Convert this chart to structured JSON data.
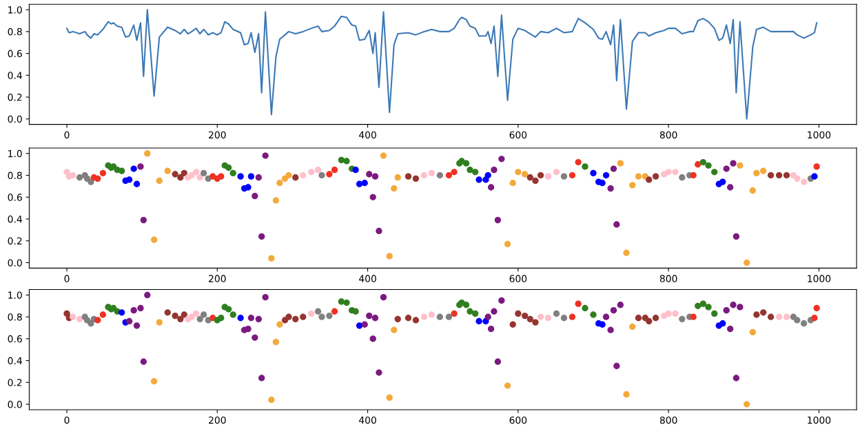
{
  "chart_data": [
    {
      "type": "line",
      "series": [
        {
          "color": "#3a78b5",
          "x": [
            0,
            3,
            8,
            17,
            24,
            27,
            32,
            36,
            41,
            48,
            55,
            59,
            62,
            67,
            73,
            78,
            83,
            89,
            93,
            98,
            102,
            107,
            116,
            123,
            134,
            144,
            151,
            156,
            161,
            166,
            172,
            177,
            182,
            188,
            194,
            200,
            205,
            210,
            215,
            221,
            231,
            236,
            241,
            245,
            250,
            255,
            259,
            264,
            272,
            278,
            283,
            290,
            295,
            304,
            314,
            325,
            334,
            339,
            349,
            356,
            365,
            372,
            379,
            384,
            389,
            396,
            402,
            407,
            410,
            415,
            421,
            429,
            435,
            440,
            454,
            464,
            475,
            485,
            496,
            508,
            515,
            522,
            525,
            531,
            536,
            543,
            548,
            557,
            560,
            564,
            568,
            573,
            578,
            586,
            593,
            600,
            609,
            616,
            623,
            630,
            640,
            651,
            661,
            672,
            680,
            689,
            700,
            707,
            712,
            717,
            723,
            727,
            731,
            736,
            744,
            752,
            760,
            769,
            774,
            783,
            794,
            800,
            809,
            818,
            828,
            833,
            839,
            846,
            853,
            861,
            867,
            872,
            877,
            882,
            886,
            890,
            895,
            904,
            912,
            917,
            926,
            936,
            947,
            957,
            966,
            971,
            980,
            989,
            994,
            997
          ],
          "values": [
            0.83,
            0.79,
            0.8,
            0.78,
            0.8,
            0.77,
            0.74,
            0.78,
            0.77,
            0.82,
            0.89,
            0.87,
            0.88,
            0.85,
            0.84,
            0.75,
            0.76,
            0.86,
            0.72,
            0.88,
            0.39,
            1.0,
            0.21,
            0.75,
            0.84,
            0.81,
            0.78,
            0.82,
            0.78,
            0.8,
            0.83,
            0.78,
            0.82,
            0.77,
            0.79,
            0.77,
            0.79,
            0.89,
            0.87,
            0.82,
            0.79,
            0.68,
            0.69,
            0.79,
            0.61,
            0.78,
            0.24,
            0.98,
            0.04,
            0.57,
            0.73,
            0.77,
            0.8,
            0.78,
            0.8,
            0.83,
            0.85,
            0.8,
            0.81,
            0.85,
            0.94,
            0.93,
            0.86,
            0.85,
            0.72,
            0.73,
            0.81,
            0.6,
            0.79,
            0.29,
            0.98,
            0.06,
            0.68,
            0.78,
            0.79,
            0.77,
            0.8,
            0.82,
            0.8,
            0.8,
            0.83,
            0.91,
            0.93,
            0.91,
            0.85,
            0.83,
            0.76,
            0.76,
            0.8,
            0.69,
            0.85,
            0.39,
            0.95,
            0.17,
            0.73,
            0.83,
            0.81,
            0.78,
            0.75,
            0.8,
            0.79,
            0.83,
            0.79,
            0.8,
            0.92,
            0.88,
            0.82,
            0.74,
            0.73,
            0.8,
            0.68,
            0.86,
            0.35,
            0.91,
            0.09,
            0.71,
            0.79,
            0.79,
            0.76,
            0.79,
            0.81,
            0.83,
            0.83,
            0.78,
            0.8,
            0.8,
            0.9,
            0.92,
            0.89,
            0.83,
            0.72,
            0.74,
            0.86,
            0.69,
            0.91,
            0.24,
            0.89,
            0.0,
            0.66,
            0.82,
            0.84,
            0.8,
            0.8,
            0.8,
            0.8,
            0.77,
            0.74,
            0.77,
            0.79,
            0.88
          ]
        }
      ],
      "xlim": [
        -50,
        1050
      ],
      "xticks": [
        0,
        200,
        400,
        600,
        800,
        1000
      ],
      "ylim": [
        -0.05,
        1.05
      ],
      "yticks": [
        {
          "value": 0,
          "label": "0.0"
        },
        {
          "value": 0.2,
          "label": "0.2"
        },
        {
          "value": 0.4,
          "label": "0.4"
        },
        {
          "value": 0.6,
          "label": "0.6"
        },
        {
          "value": 0.8,
          "label": "0.8"
        },
        {
          "value": 1,
          "label": "1.0"
        }
      ]
    },
    {
      "type": "scatter",
      "marker": "circle",
      "x": [
        0,
        3,
        8,
        17,
        24,
        27,
        32,
        36,
        41,
        48,
        55,
        59,
        62,
        67,
        73,
        78,
        83,
        89,
        93,
        98,
        102,
        107,
        116,
        123,
        134,
        144,
        151,
        156,
        161,
        166,
        172,
        177,
        182,
        188,
        194,
        200,
        205,
        210,
        215,
        221,
        231,
        236,
        241,
        245,
        250,
        255,
        259,
        264,
        272,
        278,
        283,
        290,
        295,
        304,
        314,
        325,
        334,
        339,
        349,
        356,
        365,
        372,
        379,
        384,
        389,
        396,
        402,
        407,
        410,
        415,
        421,
        429,
        435,
        440,
        454,
        464,
        475,
        485,
        496,
        508,
        515,
        522,
        525,
        531,
        536,
        543,
        548,
        557,
        560,
        564,
        568,
        573,
        578,
        586,
        593,
        600,
        609,
        616,
        623,
        630,
        640,
        651,
        661,
        672,
        680,
        689,
        700,
        707,
        712,
        717,
        723,
        727,
        731,
        736,
        744,
        752,
        760,
        769,
        774,
        783,
        794,
        800,
        809,
        818,
        828,
        833,
        839,
        846,
        853,
        861,
        867,
        872,
        877,
        882,
        886,
        890,
        895,
        904,
        912,
        917,
        926,
        936,
        947,
        957,
        966,
        971,
        980,
        989,
        994,
        997
      ],
      "values": [
        0.83,
        0.79,
        0.8,
        0.78,
        0.8,
        0.77,
        0.74,
        0.78,
        0.77,
        0.82,
        0.89,
        0.87,
        0.88,
        0.85,
        0.84,
        0.75,
        0.76,
        0.86,
        0.72,
        0.88,
        0.39,
        1.0,
        0.21,
        0.75,
        0.84,
        0.81,
        0.78,
        0.82,
        0.78,
        0.8,
        0.83,
        0.78,
        0.82,
        0.77,
        0.79,
        0.77,
        0.79,
        0.89,
        0.87,
        0.82,
        0.79,
        0.68,
        0.69,
        0.79,
        0.61,
        0.78,
        0.24,
        0.98,
        0.04,
        0.57,
        0.73,
        0.77,
        0.8,
        0.78,
        0.8,
        0.83,
        0.85,
        0.8,
        0.81,
        0.85,
        0.94,
        0.93,
        0.86,
        0.85,
        0.72,
        0.73,
        0.81,
        0.6,
        0.79,
        0.29,
        0.98,
        0.06,
        0.68,
        0.78,
        0.79,
        0.77,
        0.8,
        0.82,
        0.8,
        0.8,
        0.83,
        0.91,
        0.93,
        0.91,
        0.85,
        0.83,
        0.76,
        0.76,
        0.8,
        0.69,
        0.85,
        0.39,
        0.95,
        0.17,
        0.73,
        0.83,
        0.81,
        0.78,
        0.75,
        0.8,
        0.79,
        0.83,
        0.79,
        0.8,
        0.92,
        0.88,
        0.82,
        0.74,
        0.73,
        0.8,
        0.68,
        0.86,
        0.35,
        0.91,
        0.09,
        0.71,
        0.79,
        0.79,
        0.76,
        0.79,
        0.81,
        0.83,
        0.83,
        0.78,
        0.8,
        0.8,
        0.9,
        0.92,
        0.89,
        0.83,
        0.72,
        0.74,
        0.86,
        0.69,
        0.91,
        0.24,
        0.89,
        0.0,
        0.66,
        0.82,
        0.84,
        0.8,
        0.8,
        0.8,
        0.8,
        0.77,
        0.74,
        0.77,
        0.79,
        0.88
      ],
      "colors": [
        "#ffc0cb",
        "#ffc0cb",
        "#ffc0cb",
        "#808080",
        "#808080",
        "#808080",
        "#808080",
        "#ee3224",
        "#ee3224",
        "#ee3224",
        "#2f7f1f",
        "#2f7f1f",
        "#2f7f1f",
        "#2f7f1f",
        "#2f7f1f",
        "#0000ff",
        "#0000ff",
        "#0000ff",
        "#0000ff",
        "#7b1a80",
        "#7b1a80",
        "#f4a93b",
        "#f4a93b",
        "#f4a93b",
        "#f4a93b",
        "#953530",
        "#953530",
        "#953530",
        "#ffc0cb",
        "#ffc0cb",
        "#ffc0cb",
        "#ffc0cb",
        "#808080",
        "#808080",
        "#ee3224",
        "#ee3224",
        "#ee3224",
        "#2f7f1f",
        "#2f7f1f",
        "#2f7f1f",
        "#0000ff",
        "#0000ff",
        "#0000ff",
        "#0000ff",
        "#7b1a80",
        "#7b1a80",
        "#7b1a80",
        "#7b1a80",
        "#f4a93b",
        "#f4a93b",
        "#f4a93b",
        "#f4a93b",
        "#f4a93b",
        "#953530",
        "#ffc0cb",
        "#ffc0cb",
        "#ffc0cb",
        "#808080",
        "#ee3224",
        "#ee3224",
        "#2f7f1f",
        "#2f7f1f",
        "#2f7f1f",
        "#0000ff",
        "#0000ff",
        "#0000ff",
        "#7b1a80",
        "#7b1a80",
        "#7b1a80",
        "#7b1a80",
        "#f4a93b",
        "#f4a93b",
        "#f4a93b",
        "#f4a93b",
        "#953530",
        "#953530",
        "#ffc0cb",
        "#ffc0cb",
        "#808080",
        "#ee3224",
        "#ee3224",
        "#2f7f1f",
        "#2f7f1f",
        "#2f7f1f",
        "#2f7f1f",
        "#2f7f1f",
        "#0000ff",
        "#0000ff",
        "#0000ff",
        "#7b1a80",
        "#7b1a80",
        "#7b1a80",
        "#7b1a80",
        "#f4a93b",
        "#f4a93b",
        "#f4a93b",
        "#f4a93b",
        "#953530",
        "#953530",
        "#953530",
        "#ffc0cb",
        "#ffc0cb",
        "#808080",
        "#ee3224",
        "#ee3224",
        "#2f7f1f",
        "#0000ff",
        "#0000ff",
        "#0000ff",
        "#0000ff",
        "#7b1a80",
        "#7b1a80",
        "#7b1a80",
        "#f4a93b",
        "#f4a93b",
        "#f4a93b",
        "#f4a93b",
        "#f4a93b",
        "#953530",
        "#953530",
        "#ffc0cb",
        "#ffc0cb",
        "#ffc0cb",
        "#808080",
        "#808080",
        "#ee3224",
        "#ee3224",
        "#2f7f1f",
        "#2f7f1f",
        "#2f7f1f",
        "#0000ff",
        "#0000ff",
        "#7b1a80",
        "#7b1a80",
        "#7b1a80",
        "#7b1a80",
        "#f4a93b",
        "#f4a93b",
        "#f4a93b",
        "#f4a93b",
        "#f4a93b",
        "#953530",
        "#953530",
        "#953530",
        "#ffc0cb",
        "#ffc0cb",
        "#ffc0cb",
        "#808080",
        "#0000ff",
        "#ee3224"
      ],
      "xlim": [
        -50,
        1050
      ],
      "xticks": [
        0,
        200,
        400,
        600,
        800,
        1000
      ],
      "ylim": [
        -0.05,
        1.05
      ],
      "yticks": [
        {
          "value": 0,
          "label": "0.0"
        },
        {
          "value": 0.2,
          "label": "0.2"
        },
        {
          "value": 0.4,
          "label": "0.4"
        },
        {
          "value": 0.6,
          "label": "0.6"
        },
        {
          "value": 0.8,
          "label": "0.8"
        },
        {
          "value": 1,
          "label": "1.0"
        }
      ]
    },
    {
      "type": "scatter",
      "marker": "circle",
      "x": [
        0,
        3,
        8,
        17,
        24,
        27,
        32,
        36,
        41,
        48,
        55,
        59,
        62,
        67,
        73,
        78,
        83,
        89,
        93,
        98,
        102,
        107,
        116,
        123,
        134,
        144,
        151,
        156,
        161,
        166,
        172,
        177,
        182,
        188,
        194,
        200,
        205,
        210,
        215,
        221,
        231,
        236,
        241,
        245,
        250,
        255,
        259,
        264,
        272,
        278,
        283,
        290,
        295,
        304,
        314,
        325,
        334,
        339,
        349,
        356,
        365,
        372,
        379,
        384,
        389,
        396,
        402,
        407,
        410,
        415,
        421,
        429,
        435,
        440,
        454,
        464,
        475,
        485,
        496,
        508,
        515,
        522,
        525,
        531,
        536,
        543,
        548,
        557,
        560,
        564,
        568,
        573,
        578,
        586,
        593,
        600,
        609,
        616,
        623,
        630,
        640,
        651,
        661,
        672,
        680,
        689,
        700,
        707,
        712,
        717,
        723,
        727,
        731,
        736,
        744,
        752,
        760,
        769,
        774,
        783,
        794,
        800,
        809,
        818,
        828,
        833,
        839,
        846,
        853,
        861,
        867,
        872,
        877,
        882,
        886,
        890,
        895,
        904,
        912,
        917,
        926,
        936,
        947,
        957,
        966,
        971,
        980,
        989,
        994,
        997
      ],
      "values": [
        0.83,
        0.79,
        0.8,
        0.78,
        0.8,
        0.77,
        0.74,
        0.78,
        0.77,
        0.82,
        0.89,
        0.87,
        0.88,
        0.85,
        0.84,
        0.75,
        0.76,
        0.86,
        0.72,
        0.88,
        0.39,
        1.0,
        0.21,
        0.75,
        0.84,
        0.81,
        0.78,
        0.82,
        0.78,
        0.8,
        0.83,
        0.78,
        0.82,
        0.77,
        0.79,
        0.77,
        0.79,
        0.89,
        0.87,
        0.82,
        0.79,
        0.68,
        0.69,
        0.79,
        0.61,
        0.78,
        0.24,
        0.98,
        0.04,
        0.57,
        0.73,
        0.77,
        0.8,
        0.78,
        0.8,
        0.83,
        0.85,
        0.8,
        0.81,
        0.85,
        0.94,
        0.93,
        0.86,
        0.85,
        0.72,
        0.73,
        0.81,
        0.6,
        0.79,
        0.29,
        0.98,
        0.06,
        0.68,
        0.78,
        0.79,
        0.77,
        0.8,
        0.82,
        0.8,
        0.8,
        0.83,
        0.91,
        0.93,
        0.91,
        0.85,
        0.83,
        0.76,
        0.76,
        0.8,
        0.69,
        0.85,
        0.39,
        0.95,
        0.17,
        0.73,
        0.83,
        0.81,
        0.78,
        0.75,
        0.8,
        0.79,
        0.83,
        0.79,
        0.8,
        0.92,
        0.88,
        0.82,
        0.74,
        0.73,
        0.8,
        0.68,
        0.86,
        0.35,
        0.91,
        0.09,
        0.71,
        0.79,
        0.79,
        0.76,
        0.79,
        0.81,
        0.83,
        0.83,
        0.78,
        0.8,
        0.8,
        0.9,
        0.92,
        0.89,
        0.83,
        0.72,
        0.74,
        0.86,
        0.69,
        0.91,
        0.24,
        0.89,
        0.0,
        0.66,
        0.82,
        0.84,
        0.8,
        0.8,
        0.8,
        0.8,
        0.77,
        0.74,
        0.77,
        0.79,
        0.88
      ],
      "colors": [
        "#953530",
        "#953530",
        "#ffc0cb",
        "#ffc0cb",
        "#808080",
        "#808080",
        "#808080",
        "#808080",
        "#ee3224",
        "#ee3224",
        "#2f7f1f",
        "#2f7f1f",
        "#2f7f1f",
        "#2f7f1f",
        "#0000ff",
        "#0000ff",
        "#7b1a80",
        "#7b1a80",
        "#7b1a80",
        "#7b1a80",
        "#7b1a80",
        "#7b1a80",
        "#f4a93b",
        "#f4a93b",
        "#953530",
        "#953530",
        "#953530",
        "#953530",
        "#ffc0cb",
        "#ffc0cb",
        "#ffc0cb",
        "#808080",
        "#808080",
        "#808080",
        "#ee3224",
        "#2f7f1f",
        "#2f7f1f",
        "#2f7f1f",
        "#2f7f1f",
        "#2f7f1f",
        "#0000ff",
        "#7b1a80",
        "#7b1a80",
        "#7b1a80",
        "#7b1a80",
        "#7b1a80",
        "#7b1a80",
        "#7b1a80",
        "#f4a93b",
        "#f4a93b",
        "#f4a93b",
        "#953530",
        "#953530",
        "#953530",
        "#953530",
        "#ffc0cb",
        "#808080",
        "#808080",
        "#808080",
        "#ee3224",
        "#2f7f1f",
        "#2f7f1f",
        "#2f7f1f",
        "#2f7f1f",
        "#0000ff",
        "#7b1a80",
        "#7b1a80",
        "#7b1a80",
        "#7b1a80",
        "#7b1a80",
        "#7b1a80",
        "#f4a93b",
        "#f4a93b",
        "#953530",
        "#953530",
        "#953530",
        "#ffc0cb",
        "#ffc0cb",
        "#808080",
        "#808080",
        "#ee3224",
        "#2f7f1f",
        "#2f7f1f",
        "#2f7f1f",
        "#2f7f1f",
        "#2f7f1f",
        "#0000ff",
        "#0000ff",
        "#7b1a80",
        "#7b1a80",
        "#7b1a80",
        "#7b1a80",
        "#7b1a80",
        "#f4a93b",
        "#953530",
        "#953530",
        "#953530",
        "#953530",
        "#953530",
        "#ffc0cb",
        "#ffc0cb",
        "#808080",
        "#808080",
        "#ee3224",
        "#ee3224",
        "#2f7f1f",
        "#2f7f1f",
        "#0000ff",
        "#0000ff",
        "#7b1a80",
        "#7b1a80",
        "#7b1a80",
        "#7b1a80",
        "#7b1a80",
        "#f4a93b",
        "#f4a93b",
        "#953530",
        "#953530",
        "#953530",
        "#953530",
        "#ffc0cb",
        "#ffc0cb",
        "#ffc0cb",
        "#808080",
        "#808080",
        "#ee3224",
        "#2f7f1f",
        "#2f7f1f",
        "#2f7f1f",
        "#2f7f1f",
        "#0000ff",
        "#0000ff",
        "#7b1a80",
        "#7b1a80",
        "#7b1a80",
        "#7b1a80",
        "#7b1a80",
        "#f4a93b",
        "#f4a93b",
        "#953530",
        "#953530",
        "#953530",
        "#ffc0cb",
        "#ffc0cb",
        "#808080",
        "#808080",
        "#808080",
        "#808080",
        "#ee3224",
        "#ee3224"
      ],
      "xlim": [
        -50,
        1050
      ],
      "xticks": [
        0,
        200,
        400,
        600,
        800,
        1000
      ],
      "ylim": [
        -0.05,
        1.05
      ],
      "yticks": [
        {
          "value": 0,
          "label": "0.0"
        },
        {
          "value": 0.2,
          "label": "0.2"
        },
        {
          "value": 0.4,
          "label": "0.4"
        },
        {
          "value": 0.6,
          "label": "0.6"
        },
        {
          "value": 0.8,
          "label": "0.8"
        },
        {
          "value": 1,
          "label": "1.0"
        }
      ]
    }
  ]
}
